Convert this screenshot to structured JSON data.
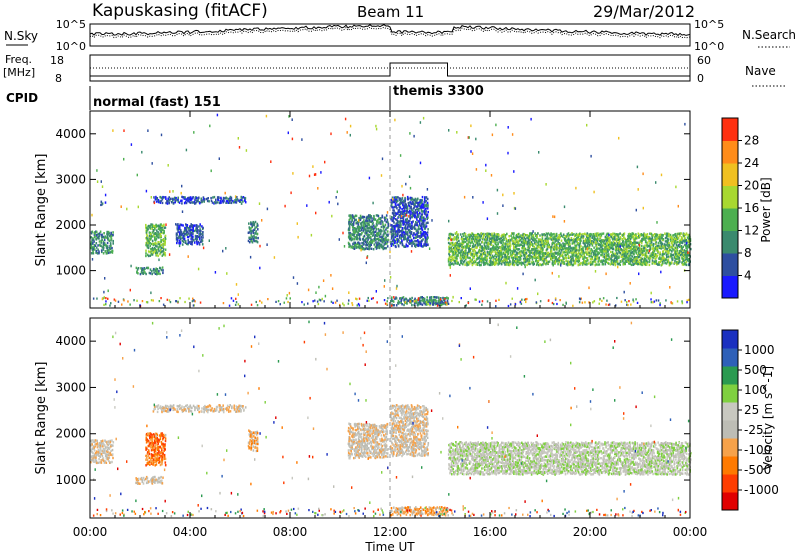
{
  "header": {
    "station": "Kapuskasing (fitACF)",
    "beam": "Beam 11",
    "date": "29/Mar/2012"
  },
  "noise_panel": {
    "left_label": "N.Sky",
    "left_top_tick": "10^5",
    "left_bottom_tick": "10^0",
    "right_top_tick": "10^5",
    "right_bottom_tick": "10^0",
    "right_label": "N.Search"
  },
  "freq_panel": {
    "left_label_line1": "Freq.",
    "left_label_line2": "[MHz]",
    "left_ticks": [
      "18",
      "8"
    ],
    "right_ticks": [
      "60",
      "0"
    ],
    "right_label": "Nave"
  },
  "cpid_panel": {
    "label": "CPID",
    "modes": [
      "normal (fast) 151",
      "themis 3300"
    ]
  },
  "axes": {
    "ylabel": "Slant Range [km]",
    "yticks": [
      "4000",
      "3000",
      "2000",
      "1000"
    ],
    "xticks": [
      "00:00",
      "04:00",
      "08:00",
      "12:00",
      "16:00",
      "20:00",
      "00:00"
    ],
    "xlabel": "Time UT"
  },
  "colors": {
    "power": [
      "#1a1aff",
      "#2e4fa0",
      "#3a8a6e",
      "#4caf50",
      "#a8d830",
      "#f0c020",
      "#ff8c1a",
      "#ff3010"
    ],
    "velocity": [
      "#e00000",
      "#ff3d00",
      "#ff7a00",
      "#f6a24a",
      "#bdbdb5",
      "#c8c8c0",
      "#7fd040",
      "#2a9a50",
      "#2e60b8",
      "#1a30c0"
    ]
  },
  "chart_data": [
    {
      "type": "heatmap",
      "title": "Power",
      "colorbar_label": "Power [dB]",
      "colorbar_ticks": [
        "28",
        "24",
        "20",
        "16",
        "12",
        "8",
        "4"
      ],
      "x_range_hours": [
        0,
        24
      ],
      "y_range_km": [
        180,
        4500
      ],
      "regions": [
        {
          "t0": 0.0,
          "t1": 0.9,
          "r0": 1350,
          "r1": 1850,
          "level": 2
        },
        {
          "t0": 0.4,
          "t1": 0.6,
          "r0": 2400,
          "r1": 2500,
          "level": 1
        },
        {
          "t0": 2.2,
          "t1": 3.0,
          "r0": 1300,
          "r1": 2000,
          "level": 3
        },
        {
          "t0": 1.8,
          "t1": 2.9,
          "r0": 900,
          "r1": 1050,
          "level": 2
        },
        {
          "t0": 2.5,
          "t1": 6.2,
          "r0": 2450,
          "r1": 2600,
          "level": 1
        },
        {
          "t0": 3.4,
          "t1": 4.5,
          "r0": 1550,
          "r1": 2000,
          "level": 1
        },
        {
          "t0": 6.3,
          "t1": 6.7,
          "r0": 1600,
          "r1": 2050,
          "level": 2
        },
        {
          "t0": 10.3,
          "t1": 11.9,
          "r0": 1450,
          "r1": 2200,
          "level": 2
        },
        {
          "t0": 12.0,
          "t1": 13.5,
          "r0": 1500,
          "r1": 2600,
          "level": 1
        },
        {
          "t0": 14.3,
          "t1": 24.0,
          "r0": 1100,
          "r1": 1800,
          "level": 3
        },
        {
          "t0": 12.0,
          "t1": 14.3,
          "r0": 220,
          "r1": 400,
          "level": 2
        }
      ]
    },
    {
      "type": "heatmap",
      "title": "Velocity",
      "colorbar_label": "Velocity [m s^-1]",
      "colorbar_ticks": [
        "1000",
        "500",
        "100",
        "25",
        "-25",
        "-100",
        "-500",
        "-1000"
      ],
      "x_range_hours": [
        0,
        24
      ],
      "y_range_km": [
        180,
        4500
      ],
      "regions": [
        {
          "t0": 0.0,
          "t1": 0.9,
          "r0": 1350,
          "r1": 1850,
          "level": 4
        },
        {
          "t0": 2.2,
          "t1": 3.0,
          "r0": 1300,
          "r1": 2000,
          "level": 2
        },
        {
          "t0": 1.8,
          "t1": 2.9,
          "r0": 900,
          "r1": 1050,
          "level": 4
        },
        {
          "t0": 2.5,
          "t1": 6.2,
          "r0": 2450,
          "r1": 2600,
          "level": 4
        },
        {
          "t0": 6.3,
          "t1": 6.7,
          "r0": 1600,
          "r1": 2050,
          "level": 3
        },
        {
          "t0": 10.3,
          "t1": 11.9,
          "r0": 1450,
          "r1": 2200,
          "level": 4
        },
        {
          "t0": 12.0,
          "t1": 13.5,
          "r0": 1500,
          "r1": 2600,
          "level": 4
        },
        {
          "t0": 14.3,
          "t1": 24.0,
          "r0": 1100,
          "r1": 1800,
          "level": 5
        },
        {
          "t0": 12.0,
          "t1": 14.3,
          "r0": 220,
          "r1": 400,
          "level": 3
        }
      ]
    }
  ]
}
